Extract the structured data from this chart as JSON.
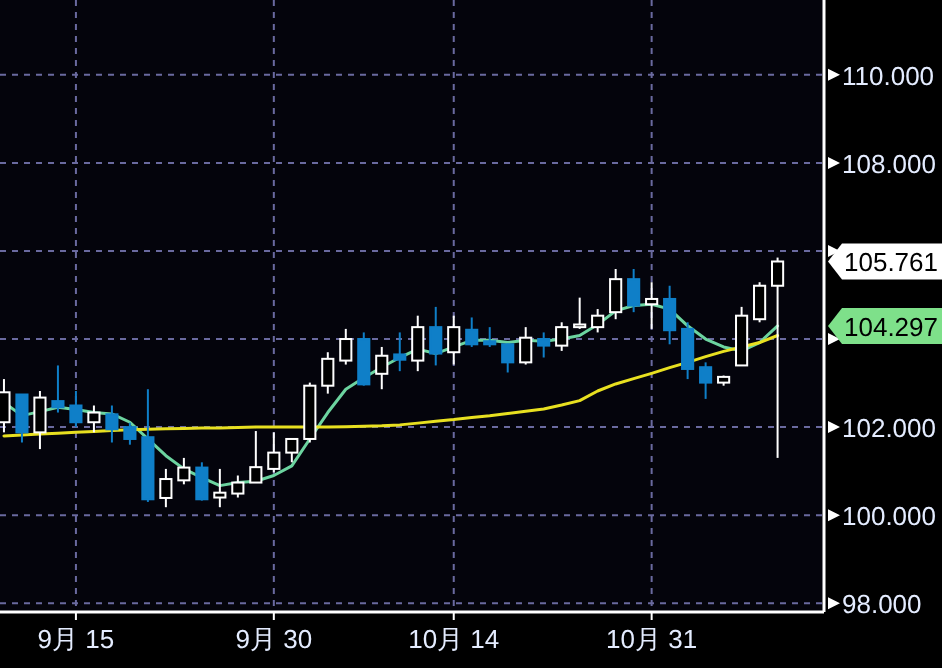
{
  "chart_data": {
    "type": "candlestick",
    "categories": [
      null,
      null,
      null,
      null,
      "9月 15",
      null,
      null,
      null,
      null,
      null,
      null,
      null,
      null,
      null,
      null,
      "9月 30",
      null,
      null,
      null,
      null,
      null,
      null,
      null,
      null,
      null,
      "10月 14",
      null,
      null,
      null,
      null,
      null,
      null,
      null,
      null,
      null,
      null,
      "10月 31",
      null,
      null,
      null,
      null,
      null,
      null,
      null
    ],
    "ohlc": [
      [
        102.11,
        103.09,
        101.88,
        102.79
      ],
      [
        102.74,
        102.75,
        101.65,
        101.88
      ],
      [
        101.88,
        102.82,
        101.5,
        102.67
      ],
      [
        102.59,
        103.4,
        102.33,
        102.45
      ],
      [
        102.49,
        102.82,
        102.0,
        102.11
      ],
      [
        102.11,
        102.49,
        101.88,
        102.33
      ],
      [
        102.29,
        102.49,
        101.65,
        101.95
      ],
      [
        102.0,
        102.1,
        101.6,
        101.73
      ],
      [
        101.77,
        102.86,
        100.3,
        100.36
      ],
      [
        100.39,
        101.05,
        100.18,
        100.82
      ],
      [
        100.79,
        101.3,
        100.7,
        101.08
      ],
      [
        101.08,
        101.2,
        100.33,
        100.36
      ],
      [
        100.4,
        101.05,
        100.18,
        100.51
      ],
      [
        100.49,
        100.9,
        100.4,
        100.74
      ],
      [
        100.74,
        101.91,
        100.74,
        101.09
      ],
      [
        101.05,
        101.88,
        100.97,
        101.42
      ],
      [
        101.42,
        101.73,
        101.2,
        101.73
      ],
      [
        101.73,
        103.01,
        101.65,
        102.94
      ],
      [
        102.94,
        103.7,
        102.76,
        103.55
      ],
      [
        103.51,
        104.23,
        103.42,
        104.0
      ],
      [
        104.0,
        104.15,
        102.94,
        102.97
      ],
      [
        103.21,
        103.82,
        102.86,
        103.62
      ],
      [
        103.65,
        104.15,
        103.27,
        103.53
      ],
      [
        103.51,
        104.53,
        103.27,
        104.27
      ],
      [
        104.27,
        104.73,
        103.4,
        103.67
      ],
      [
        103.7,
        104.53,
        103.42,
        104.27
      ],
      [
        104.21,
        104.49,
        103.82,
        103.88
      ],
      [
        103.95,
        104.27,
        103.82,
        103.88
      ],
      [
        103.88,
        103.9,
        103.24,
        103.47
      ],
      [
        103.47,
        104.27,
        103.42,
        104.03
      ],
      [
        104.0,
        104.15,
        103.58,
        103.85
      ],
      [
        103.85,
        104.38,
        103.73,
        104.27
      ],
      [
        104.27,
        104.94,
        104.23,
        104.33
      ],
      [
        104.27,
        104.68,
        104.15,
        104.53
      ],
      [
        104.61,
        105.59,
        104.45,
        105.36
      ],
      [
        105.36,
        105.59,
        104.61,
        104.76
      ],
      [
        104.79,
        105.29,
        104.23,
        104.91
      ],
      [
        104.91,
        105.21,
        103.88,
        104.2
      ],
      [
        104.23,
        104.38,
        103.09,
        103.32
      ],
      [
        103.36,
        103.47,
        102.64,
        103.01
      ],
      [
        103.01,
        103.17,
        102.94,
        103.14
      ],
      [
        103.4,
        104.73,
        103.4,
        104.53
      ],
      [
        104.45,
        105.29,
        104.38,
        105.21
      ],
      [
        105.21,
        105.85,
        101.3,
        105.761
      ]
    ],
    "colors": [
      "#ffffff",
      "#0f7fc8",
      "#ffffff",
      "#0f7fc8",
      "#0f7fc8",
      "#ffffff",
      "#0f7fc8",
      "#0f7fc8",
      "#0f7fc8",
      "#ffffff",
      "#ffffff",
      "#0f7fc8",
      "#ffffff",
      "#ffffff",
      "#ffffff",
      "#ffffff",
      "#ffffff",
      "#ffffff",
      "#ffffff",
      "#ffffff",
      "#0f7fc8",
      "#ffffff",
      "#0f7fc8",
      "#ffffff",
      "#0f7fc8",
      "#ffffff",
      "#0f7fc8",
      "#0f7fc8",
      "#0f7fc8",
      "#ffffff",
      "#0f7fc8",
      "#ffffff",
      "#ffffff",
      "#ffffff",
      "#ffffff",
      "#0f7fc8",
      "#ffffff",
      "#0f7fc8",
      "#0f7fc8",
      "#0f7fc8",
      "#ffffff",
      "#ffffff",
      "#ffffff",
      "#ffffff"
    ],
    "series": [
      {
        "type": "line",
        "color": "#6cd4a0",
        "values": [
          102.56,
          102.26,
          102.35,
          102.45,
          102.4,
          102.33,
          102.3,
          102.11,
          101.73,
          101.35,
          101.05,
          100.85,
          100.67,
          100.74,
          100.77,
          100.9,
          101.12,
          101.73,
          102.33,
          102.86,
          103.12,
          103.36,
          103.58,
          103.77,
          103.67,
          103.82,
          103.97,
          103.97,
          103.92,
          103.97,
          103.95,
          104.0,
          104.08,
          104.33,
          104.64,
          104.76,
          104.79,
          104.68,
          104.3,
          104.0,
          103.82,
          103.73,
          103.92,
          104.297
        ]
      },
      {
        "type": "line",
        "color": "#e8e020",
        "values": [
          101.8,
          101.82,
          101.84,
          101.86,
          101.88,
          101.9,
          101.92,
          101.94,
          101.95,
          101.96,
          101.97,
          101.98,
          101.98,
          101.99,
          102.0,
          102.0,
          102.0,
          102.0,
          102.0,
          102.01,
          102.02,
          102.03,
          102.05,
          102.09,
          102.13,
          102.17,
          102.22,
          102.26,
          102.31,
          102.36,
          102.41,
          102.5,
          102.6,
          102.82,
          102.98,
          103.1,
          103.22,
          103.35,
          103.47,
          103.6,
          103.72,
          103.82,
          103.92,
          104.08
        ]
      }
    ],
    "ylim": [
      97.8,
      111.7
    ],
    "yticks": [
      {
        "value": 98,
        "label": "98.000"
      },
      {
        "value": 100,
        "label": "100.000"
      },
      {
        "value": 102,
        "label": "102.000"
      },
      {
        "value": 104,
        "label": null
      },
      {
        "value": 106,
        "label": null
      },
      {
        "value": 108,
        "label": "108.000"
      },
      {
        "value": 110,
        "label": "110.000"
      }
    ],
    "grid": true,
    "annotations": [
      "105.761",
      "104.297"
    ]
  }
}
